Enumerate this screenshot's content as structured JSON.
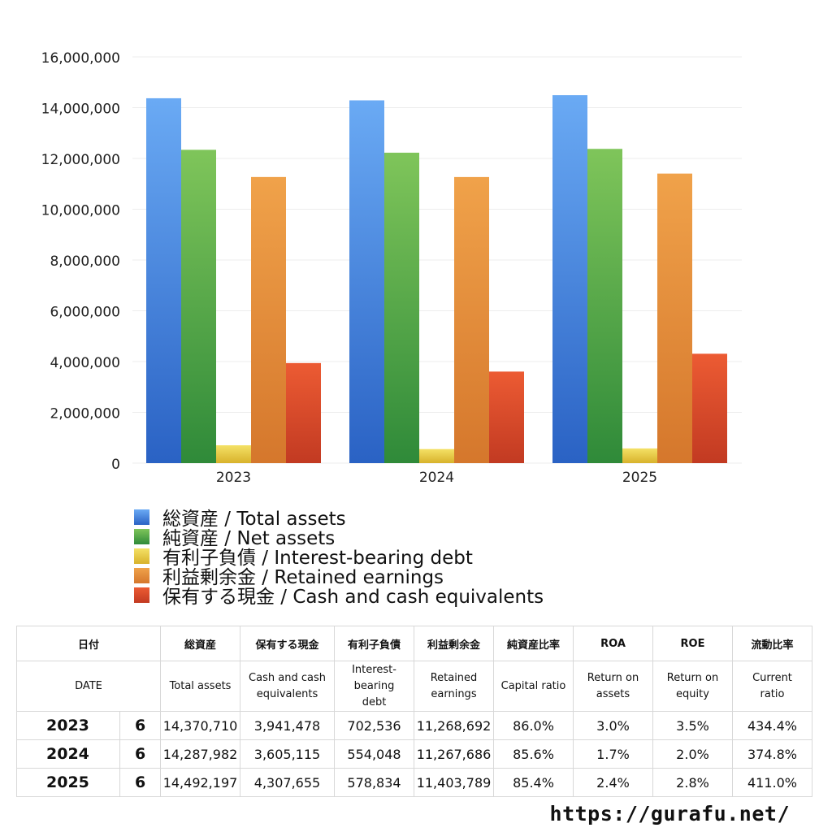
{
  "chart_data": {
    "type": "bar",
    "categories": [
      "2023",
      "2024",
      "2025"
    ],
    "ylim": [
      0,
      16000000
    ],
    "yticks": [
      "0",
      "2,000,000",
      "4,000,000",
      "6,000,000",
      "8,000,000",
      "10,000,000",
      "12,000,000",
      "14,000,000",
      "16,000,000"
    ],
    "grid": true,
    "legend_position": "bottom",
    "series": [
      {
        "name": "総資産 / Total assets",
        "color": "#3d7fdc",
        "colors": [
          "#6aaaf4",
          "#2a62c4"
        ],
        "values": [
          14370710,
          14287982,
          14492197
        ]
      },
      {
        "name": "純資産 / Net assets",
        "color": "#4ea447",
        "colors": [
          "#7fc55a",
          "#2f8a39"
        ],
        "values": [
          12339456,
          12226104,
          12376811
        ]
      },
      {
        "name": "有利子負債 / Interest-bearing debt",
        "color": "#e6c83a",
        "colors": [
          "#f4e166",
          "#d8b22b"
        ],
        "values": [
          702536,
          554048,
          578834
        ]
      },
      {
        "name": "利益剰余金 / Retained earnings",
        "color": "#e48a35",
        "colors": [
          "#f0a24a",
          "#d5772c"
        ],
        "values": [
          11268692,
          11267686,
          11403789
        ]
      },
      {
        "name": "保有する現金 /  Cash and cash equivalents",
        "color": "#dc4b2a",
        "colors": [
          "#ec5b33",
          "#c23a22"
        ],
        "values": [
          3941478,
          3605115,
          4307655
        ]
      }
    ]
  },
  "table": {
    "headers_jp": [
      "日付",
      "",
      "総資産",
      "保有する現金",
      "有利子負債",
      "利益剰余金",
      "純資産比率",
      "ROA",
      "ROE",
      "流動比率"
    ],
    "headers_en": [
      "DATE",
      "",
      "Total assets",
      "Cash and cash\nequivalents",
      "Interest-\nbearing\ndebt",
      "Retained\nearnings",
      "Capital ratio",
      "Return on\nassets",
      "Return on\nequity",
      "Current\nratio"
    ],
    "rows": [
      [
        "2023",
        "6",
        "14,370,710",
        "3,941,478",
        "702,536",
        "11,268,692",
        "86.0%",
        "3.0%",
        "3.5%",
        "434.4%"
      ],
      [
        "2024",
        "6",
        "14,287,982",
        "3,605,115",
        "554,048",
        "11,267,686",
        "85.6%",
        "1.7%",
        "2.0%",
        "374.8%"
      ],
      [
        "2025",
        "6",
        "14,492,197",
        "4,307,655",
        "578,834",
        "11,403,789",
        "85.4%",
        "2.4%",
        "2.8%",
        "411.0%"
      ]
    ]
  },
  "footer": {
    "site": "https://gurafu.net/"
  }
}
